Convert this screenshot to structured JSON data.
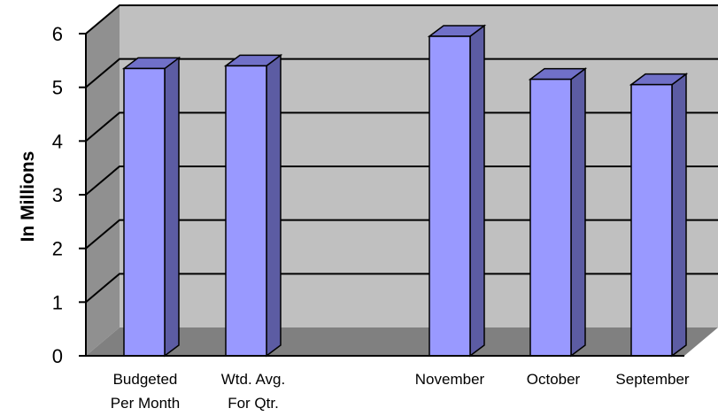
{
  "chart_data": {
    "type": "bar",
    "ylabel": "In Millions",
    "xlabel": "",
    "ylim": [
      0,
      6
    ],
    "yticks": [
      "0",
      "1",
      "2",
      "3",
      "4",
      "5",
      "6"
    ],
    "grid": true,
    "legend": "none",
    "categories": [
      [
        "Budgeted",
        "Per Month"
      ],
      [
        "Wtd. Avg.",
        "For Qtr."
      ],
      [
        "November"
      ],
      [
        "October"
      ],
      [
        "September"
      ]
    ],
    "values": [
      5.35,
      5.4,
      5.95,
      5.15,
      5.05
    ],
    "colors": {
      "bar_front": "#9999ff",
      "bar_side": "#5c5ca3",
      "bar_top": "#7070c8",
      "back_wall": "#c0c0c0",
      "side_wall": "#909090",
      "floor": "#808080"
    }
  }
}
